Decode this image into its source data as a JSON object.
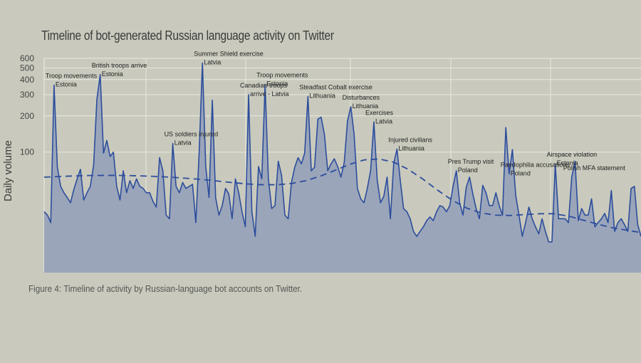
{
  "chart_data": {
    "type": "area",
    "title": "Timeline of bot-generated Russian language activity on Twitter",
    "caption": "Figure 4: Timeline of activity by Russian-language bot accounts on Twitter.",
    "xlabel": "",
    "ylabel": "Daily volume",
    "yscale": "log",
    "ylim": [
      10,
      600
    ],
    "yticks": [
      100,
      200,
      300,
      400,
      500,
      600
    ],
    "grid": true,
    "colors": {
      "line": "#2d4d9c",
      "fill": "#9aa5ba",
      "trend": "#2d4d9c",
      "background": "#c9cabd",
      "grid": "#e9e9e1"
    },
    "series": [
      {
        "values": [
          32,
          30,
          26,
          360,
          75,
          52,
          46,
          42,
          38,
          49,
          60,
          72,
          40,
          46,
          52,
          78,
          275,
          440,
          98,
          125,
          92,
          100,
          52,
          40,
          70,
          46,
          58,
          50,
          60,
          52,
          50,
          46,
          46,
          39,
          35,
          90,
          70,
          30,
          28,
          118,
          52,
          46,
          56,
          50,
          52,
          54,
          26,
          98,
          550,
          76,
          42,
          270,
          42,
          30,
          36,
          50,
          45,
          28,
          60,
          46,
          32,
          24,
          300,
          32,
          20,
          76,
          60,
          365,
          60,
          34,
          36,
          84,
          64,
          30,
          28,
          56,
          75,
          90,
          80,
          98,
          290,
          70,
          75,
          188,
          195,
          140,
          70,
          80,
          88,
          76,
          62,
          82,
          182,
          238,
          140,
          50,
          41,
          38,
          50,
          70,
          178,
          59,
          38,
          43,
          62,
          28,
          80,
          106,
          58,
          34,
          32,
          28,
          22,
          20,
          22,
          24,
          27,
          29,
          27,
          32,
          36,
          35,
          32,
          36,
          52,
          70,
          38,
          30,
          51,
          62,
          45,
          34,
          28,
          53,
          46,
          36,
          36,
          46,
          36,
          30,
          160,
          66,
          105,
          44,
          30,
          20,
          26,
          35,
          28,
          24,
          21,
          28,
          22,
          18,
          18,
          80,
          28,
          28,
          28,
          26,
          62,
          84,
          27,
          34,
          30,
          30,
          41,
          24,
          26,
          28,
          31,
          26,
          48,
          22,
          26,
          28,
          25,
          22,
          50,
          52,
          25,
          20
        ],
        "trend": [
          62,
          62.7,
          63.4,
          63.9,
          64.1,
          64.1,
          63.8,
          63.3,
          62.6,
          61.6,
          60.4,
          59,
          57.4,
          55.7,
          54.4,
          53.6,
          53.6,
          54.9,
          58,
          63.4,
          70.7,
          79.3,
          86.2,
          87.7,
          82.6,
          72.1,
          59.9,
          48.6,
          40.1,
          34.4,
          31.3,
          30,
          29.8,
          30.3,
          30.8,
          30.8,
          29.5,
          27.3,
          25.3,
          23.6,
          22.5,
          21.5
        ]
      }
    ],
    "annotations": [
      {
        "label": "Troop movements",
        "sub": "Estonia",
        "index": 3
      },
      {
        "label": "British troops arrive",
        "sub": "Estonia",
        "index": 17
      },
      {
        "label": "US soldiers injured",
        "sub": "Latvia",
        "index": 39
      },
      {
        "label": "Summer Shield exercise",
        "sub": "Latvia",
        "index": 48
      },
      {
        "label": "Canadian troops",
        "sub": "arrive - Latvia",
        "index": 62
      },
      {
        "label": "Troop movements",
        "sub": "Estonia",
        "index": 67
      },
      {
        "label": "Steadfast Cobalt exercise",
        "sub": "Lithuania",
        "index": 80
      },
      {
        "label": "Disturbances",
        "sub": "Lithuania",
        "index": 93
      },
      {
        "label": "Exercises",
        "sub": "Latvia",
        "index": 100
      },
      {
        "label": "Injured civilians",
        "sub": "Lithuania",
        "index": 107
      },
      {
        "label": "Pres Trump visit",
        "sub": "Poland",
        "index": 125
      },
      {
        "label": "Paedophilia accusations",
        "sub": "Poland",
        "index": 141
      },
      {
        "label": "Airspace violation",
        "sub": "Estonia",
        "index": 155
      },
      {
        "label": "Polish MFA statement",
        "sub": "",
        "index": 160
      }
    ]
  }
}
